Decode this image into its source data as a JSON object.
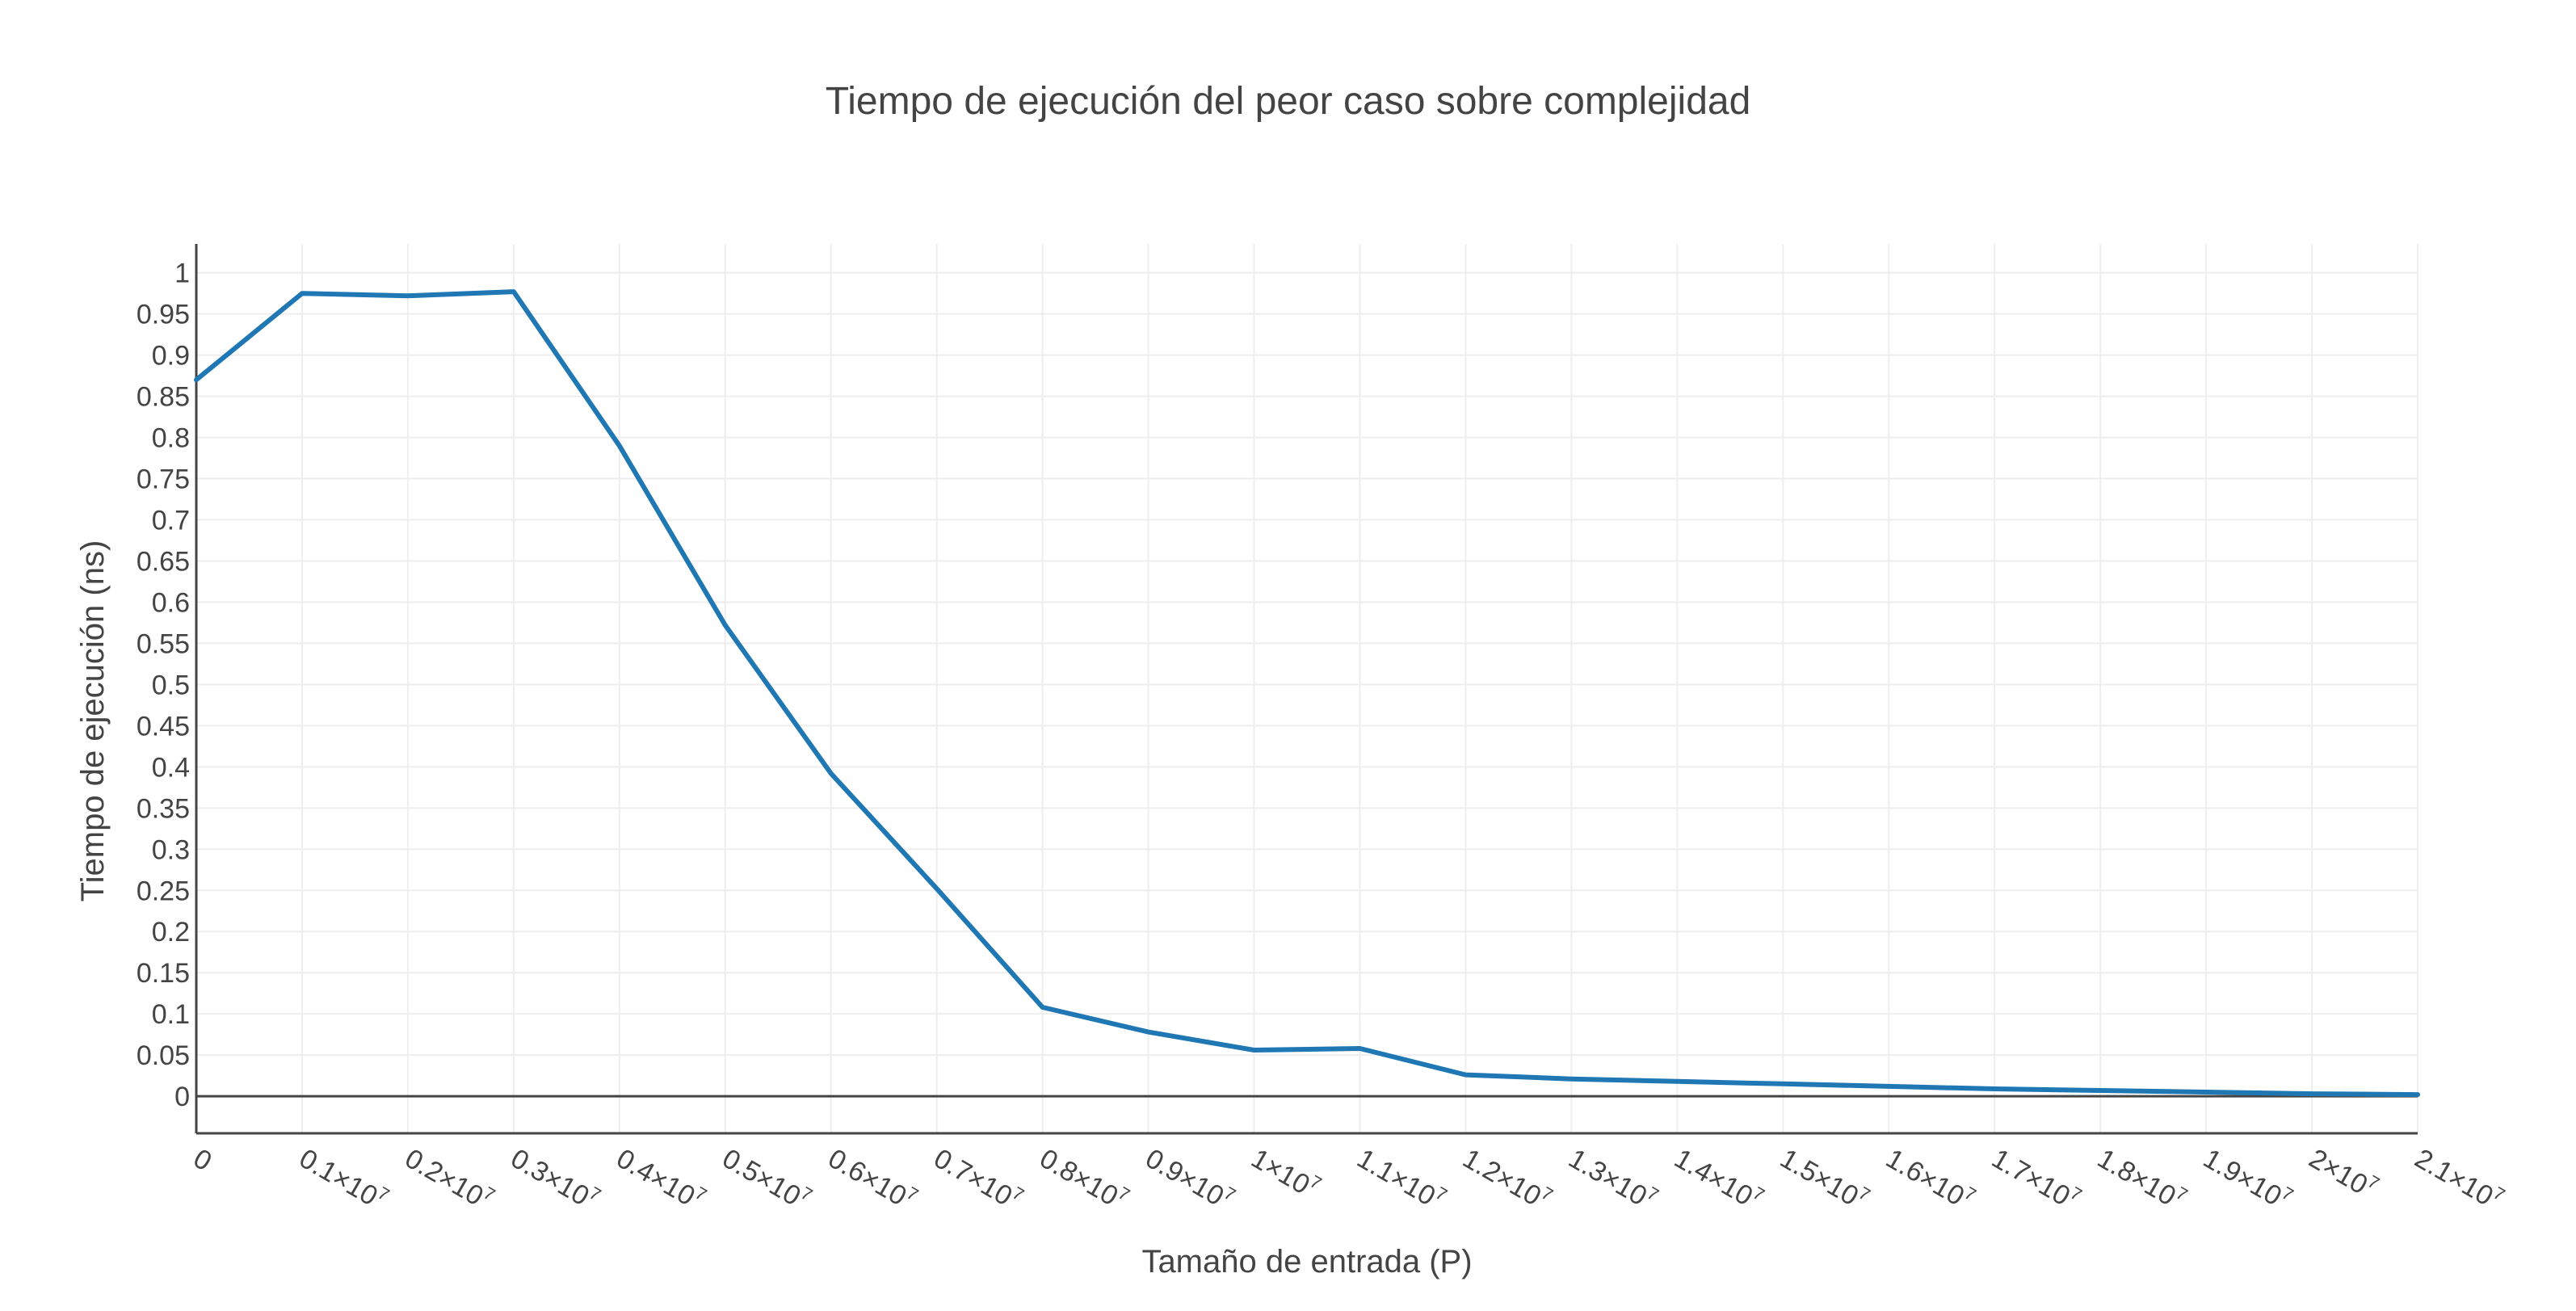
{
  "chart_data": {
    "type": "line",
    "title": "Tiempo de ejecución del peor caso sobre complejidad",
    "xlabel": "Tamaño de entrada (P)",
    "ylabel": "Tiempo de ejecución (ns)",
    "xlim": [
      0,
      21000000
    ],
    "ylim": [
      -0.045,
      1.035
    ],
    "grid": true,
    "legend": "none",
    "line_color": "#1f77b4",
    "grid_color": "#eeeeee",
    "axis_color": "#444444",
    "x_ticks": [
      {
        "value": 0,
        "mantissa": "0",
        "exp": ""
      },
      {
        "value": 1000000,
        "mantissa": "0.1×10",
        "exp": "7"
      },
      {
        "value": 2000000,
        "mantissa": "0.2×10",
        "exp": "7"
      },
      {
        "value": 3000000,
        "mantissa": "0.3×10",
        "exp": "7"
      },
      {
        "value": 4000000,
        "mantissa": "0.4×10",
        "exp": "7"
      },
      {
        "value": 5000000,
        "mantissa": "0.5×10",
        "exp": "7"
      },
      {
        "value": 6000000,
        "mantissa": "0.6×10",
        "exp": "7"
      },
      {
        "value": 7000000,
        "mantissa": "0.7×10",
        "exp": "7"
      },
      {
        "value": 8000000,
        "mantissa": "0.8×10",
        "exp": "7"
      },
      {
        "value": 9000000,
        "mantissa": "0.9×10",
        "exp": "7"
      },
      {
        "value": 10000000,
        "mantissa": "1×10",
        "exp": "7"
      },
      {
        "value": 11000000,
        "mantissa": "1.1×10",
        "exp": "7"
      },
      {
        "value": 12000000,
        "mantissa": "1.2×10",
        "exp": "7"
      },
      {
        "value": 13000000,
        "mantissa": "1.3×10",
        "exp": "7"
      },
      {
        "value": 14000000,
        "mantissa": "1.4×10",
        "exp": "7"
      },
      {
        "value": 15000000,
        "mantissa": "1.5×10",
        "exp": "7"
      },
      {
        "value": 16000000,
        "mantissa": "1.6×10",
        "exp": "7"
      },
      {
        "value": 17000000,
        "mantissa": "1.7×10",
        "exp": "7"
      },
      {
        "value": 18000000,
        "mantissa": "1.8×10",
        "exp": "7"
      },
      {
        "value": 19000000,
        "mantissa": "1.9×10",
        "exp": "7"
      },
      {
        "value": 20000000,
        "mantissa": "2×10",
        "exp": "7"
      },
      {
        "value": 21000000,
        "mantissa": "2.1×10",
        "exp": "7"
      }
    ],
    "y_ticks": [
      {
        "value": 0,
        "label": "0"
      },
      {
        "value": 0.05,
        "label": "0.05"
      },
      {
        "value": 0.1,
        "label": "0.1"
      },
      {
        "value": 0.15,
        "label": "0.15"
      },
      {
        "value": 0.2,
        "label": "0.2"
      },
      {
        "value": 0.25,
        "label": "0.25"
      },
      {
        "value": 0.3,
        "label": "0.3"
      },
      {
        "value": 0.35,
        "label": "0.35"
      },
      {
        "value": 0.4,
        "label": "0.4"
      },
      {
        "value": 0.45,
        "label": "0.45"
      },
      {
        "value": 0.5,
        "label": "0.5"
      },
      {
        "value": 0.55,
        "label": "0.55"
      },
      {
        "value": 0.6,
        "label": "0.6"
      },
      {
        "value": 0.65,
        "label": "0.65"
      },
      {
        "value": 0.7,
        "label": "0.7"
      },
      {
        "value": 0.75,
        "label": "0.75"
      },
      {
        "value": 0.8,
        "label": "0.8"
      },
      {
        "value": 0.85,
        "label": "0.85"
      },
      {
        "value": 0.9,
        "label": "0.9"
      },
      {
        "value": 0.95,
        "label": "0.95"
      },
      {
        "value": 1,
        "label": "1"
      }
    ],
    "series": [
      {
        "x": [
          0,
          1000000,
          2000000,
          3000000,
          4000000,
          5000000,
          6000000,
          7000000,
          8000000,
          9000000,
          10000000,
          11000000,
          12000000,
          13000000,
          14000000,
          15000000,
          16000000,
          17000000,
          18000000,
          19000000,
          20000000,
          21000000
        ],
        "y": [
          0.87,
          0.975,
          0.972,
          0.977,
          0.79,
          0.572,
          0.392,
          0.252,
          0.108,
          0.078,
          0.056,
          0.058,
          0.026,
          0.021,
          0.018,
          0.015,
          0.012,
          0.009,
          0.007,
          0.005,
          0.003,
          0.002
        ]
      }
    ]
  }
}
